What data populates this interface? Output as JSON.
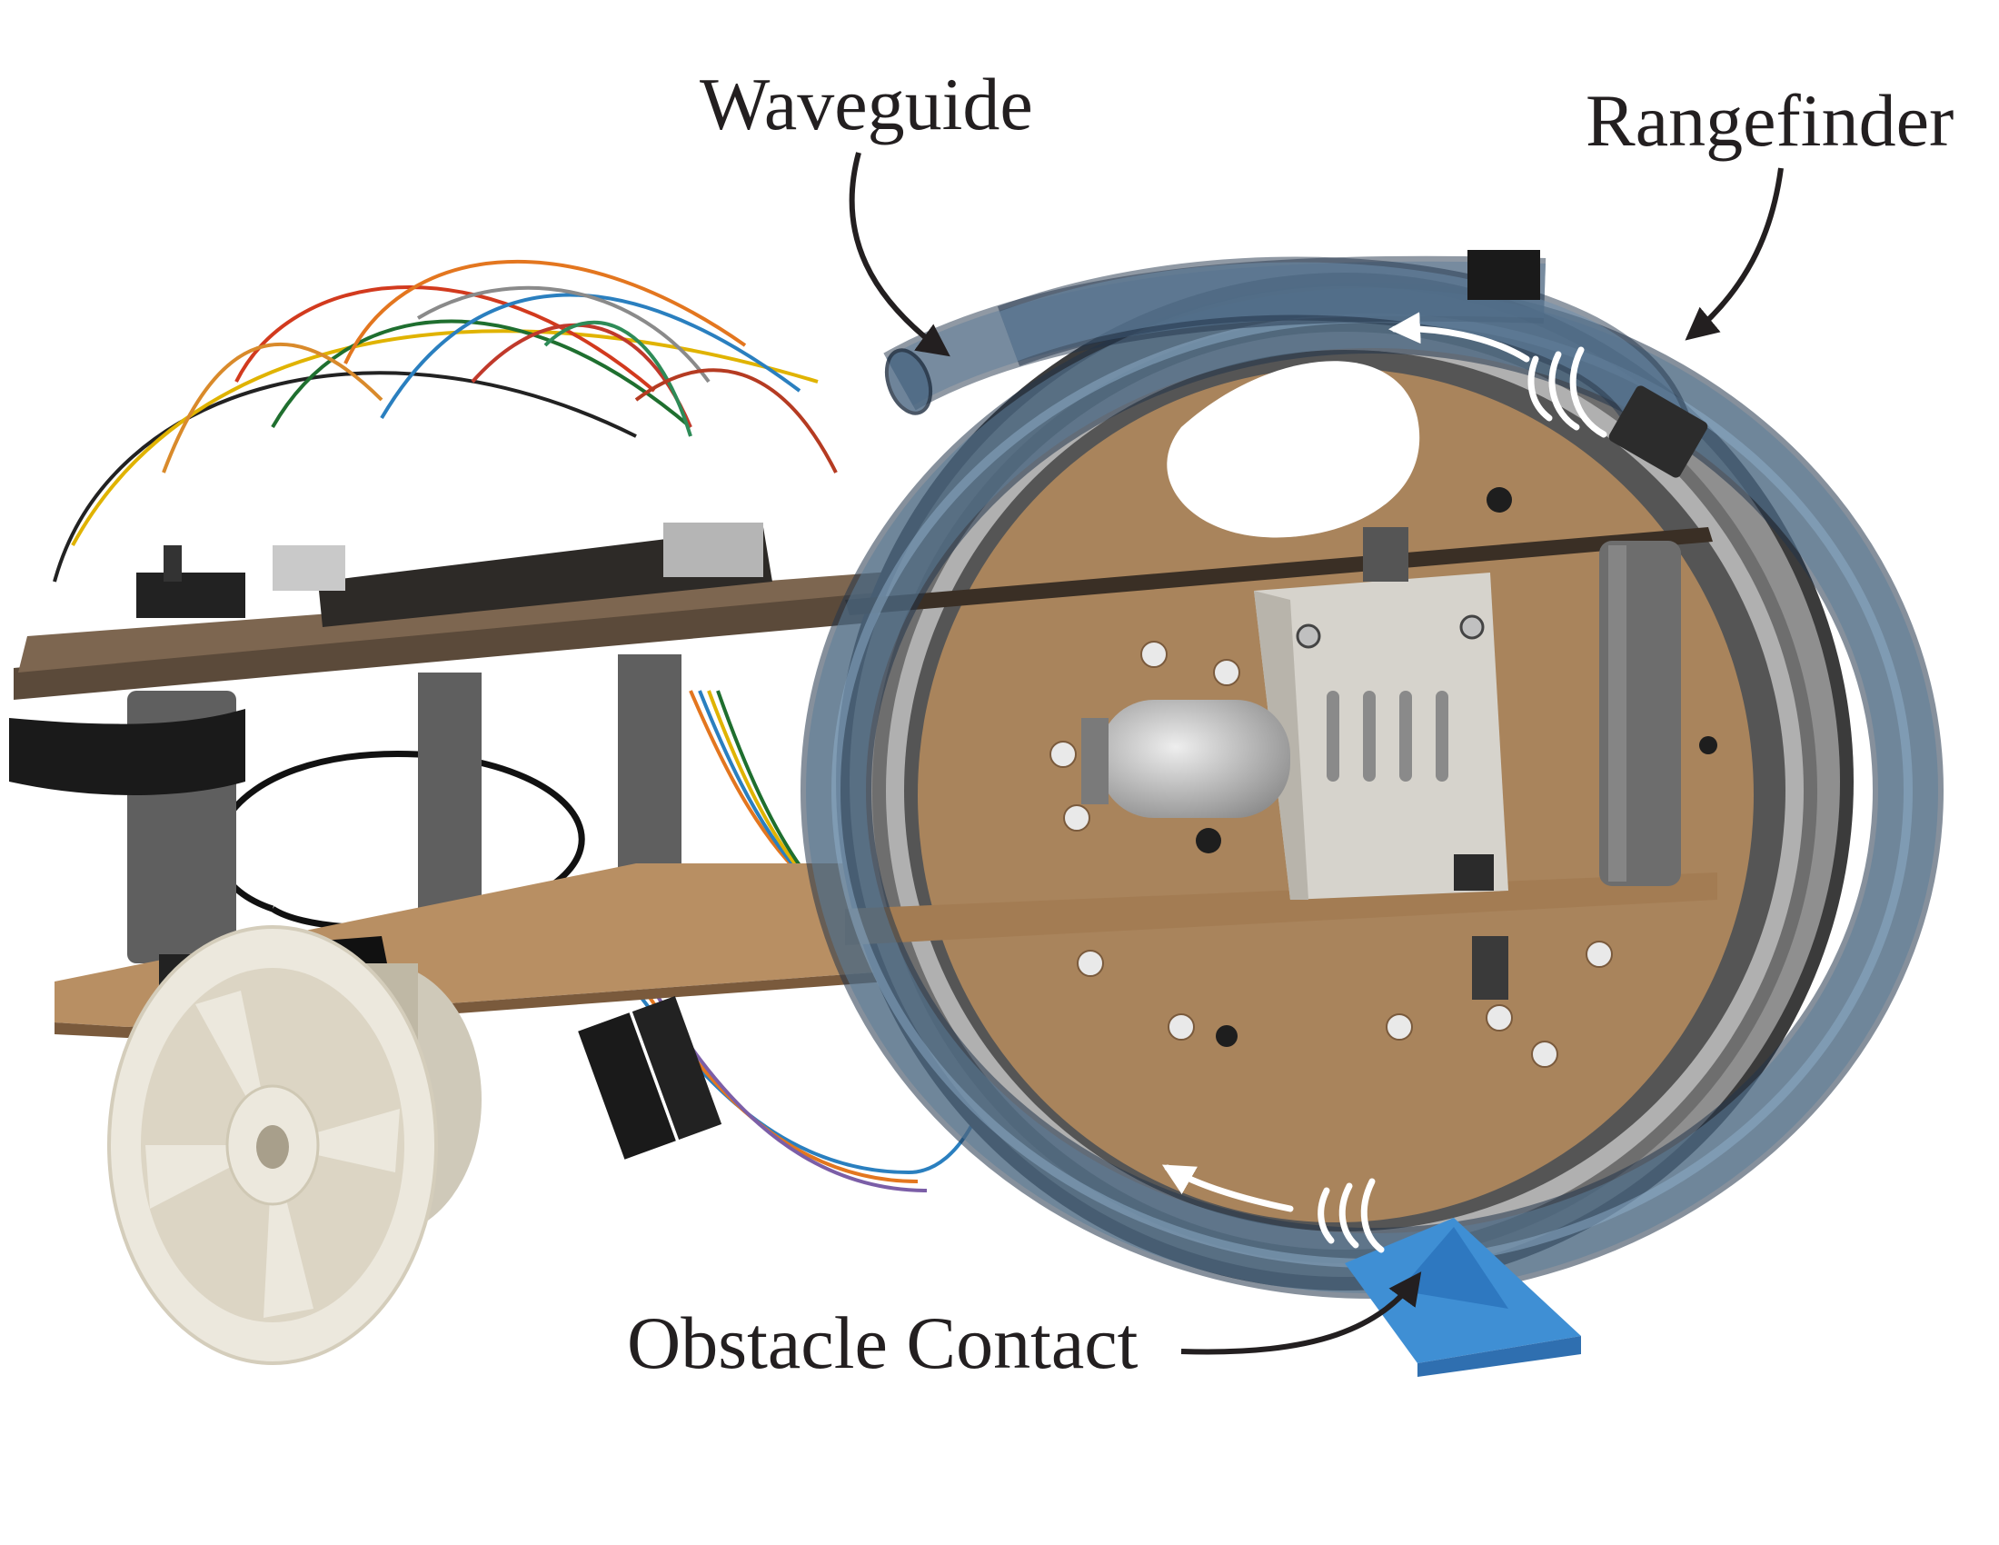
{
  "labels": {
    "waveguide": "Waveguide",
    "rangefinder": "Rangefinder",
    "obstacle_contact": "Obstacle Contact"
  },
  "colors": {
    "background": "#ffffff",
    "waveguide_tube": "#5d7d99",
    "waveguide_edge": "#22344a",
    "mdf_board": "#a9845c",
    "wheel": "#ece8dd",
    "obstacle": "#3f8fd4",
    "annotation_text": "#231f20"
  },
  "icons": {
    "wave_arrow": "white-arrow-with-sound-waves",
    "callout_arrow": "curved-black-arrow"
  }
}
